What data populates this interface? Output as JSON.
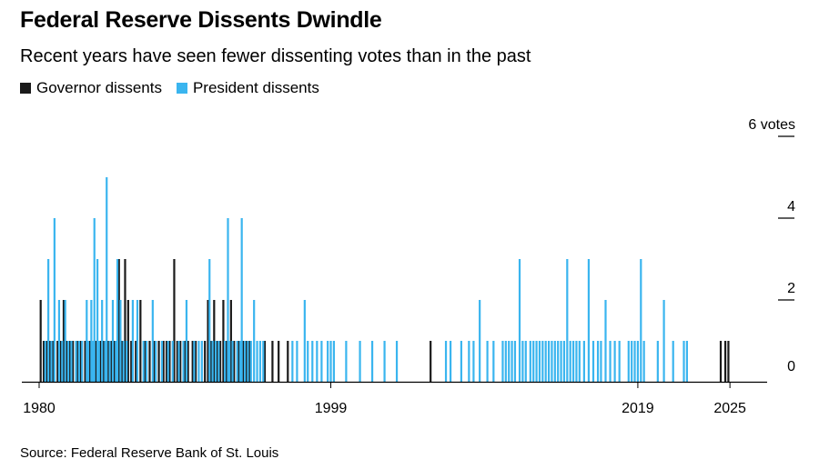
{
  "title": "Federal Reserve Dissents Dwindle",
  "subtitle": "Recent years have seen fewer dissenting votes than in the past",
  "source": "Source: Federal Reserve Bank of St. Louis",
  "colors": {
    "governor": "#1a1a1a",
    "president": "#3ab5ef",
    "axis": "#000000"
  },
  "legend": [
    {
      "label": "Governor dissents",
      "color": "#1a1a1a"
    },
    {
      "label": "President dissents",
      "color": "#3ab5ef"
    }
  ],
  "chart_data": {
    "type": "bar",
    "title": "Federal Reserve Dissents Dwindle",
    "subtitle": "Recent years have seen fewer dissenting votes than in the past",
    "xlim": [
      1980,
      2026
    ],
    "ylim": [
      0,
      6
    ],
    "x_ticks": [
      "1980",
      "1999",
      "2019",
      "2025"
    ],
    "y_ticks": [
      {
        "value": 0,
        "label": "0"
      },
      {
        "value": 2,
        "label": "2"
      },
      {
        "value": 4,
        "label": "4"
      },
      {
        "value": 6,
        "label": "6 votes"
      }
    ],
    "grid": false,
    "legend_position": "top-left",
    "series": [
      {
        "name": "Governor dissents",
        "points": [
          [
            1980.1,
            2
          ],
          [
            1980.3,
            1
          ],
          [
            1980.5,
            1
          ],
          [
            1980.7,
            1
          ],
          [
            1980.9,
            1
          ],
          [
            1981.2,
            1
          ],
          [
            1981.4,
            1
          ],
          [
            1981.6,
            2
          ],
          [
            1981.8,
            1
          ],
          [
            1982.0,
            1
          ],
          [
            1982.2,
            1
          ],
          [
            1982.5,
            1
          ],
          [
            1982.7,
            1
          ],
          [
            1983.0,
            1
          ],
          [
            1983.3,
            1
          ],
          [
            1983.7,
            1
          ],
          [
            1984.0,
            1
          ],
          [
            1984.2,
            1
          ],
          [
            1984.5,
            1
          ],
          [
            1984.7,
            1
          ],
          [
            1984.9,
            1
          ],
          [
            1985.2,
            3
          ],
          [
            1985.4,
            1
          ],
          [
            1985.6,
            3
          ],
          [
            1985.8,
            2
          ],
          [
            1986.0,
            1
          ],
          [
            1986.3,
            1
          ],
          [
            1986.6,
            2
          ],
          [
            1986.9,
            1
          ],
          [
            1987.2,
            1
          ],
          [
            1987.5,
            1
          ],
          [
            1987.8,
            1
          ],
          [
            1988.1,
            1
          ],
          [
            1988.3,
            1
          ],
          [
            1988.5,
            1
          ],
          [
            1988.8,
            3
          ],
          [
            1989.0,
            1
          ],
          [
            1989.2,
            1
          ],
          [
            1989.5,
            1
          ],
          [
            1989.7,
            1
          ],
          [
            1990.0,
            1
          ],
          [
            1990.2,
            1
          ],
          [
            1990.8,
            1
          ],
          [
            1991.0,
            2
          ],
          [
            1991.2,
            1
          ],
          [
            1991.4,
            2
          ],
          [
            1991.6,
            1
          ],
          [
            1991.8,
            1
          ],
          [
            1992.0,
            2
          ],
          [
            1992.2,
            1
          ],
          [
            1992.5,
            2
          ],
          [
            1992.7,
            1
          ],
          [
            1993.0,
            1
          ],
          [
            1993.3,
            1
          ],
          [
            1993.5,
            1
          ],
          [
            1993.7,
            1
          ],
          [
            1994.7,
            1
          ],
          [
            1995.2,
            1
          ],
          [
            1995.6,
            1
          ],
          [
            1996.2,
            1
          ],
          [
            2005.5,
            1
          ],
          [
            2024.4,
            1
          ],
          [
            2024.7,
            1
          ],
          [
            2024.9,
            1
          ]
        ]
      },
      {
        "name": "President dissents",
        "points": [
          [
            1980.4,
            1
          ],
          [
            1980.6,
            3
          ],
          [
            1980.8,
            1
          ],
          [
            1981.0,
            4
          ],
          [
            1981.3,
            2
          ],
          [
            1981.5,
            1
          ],
          [
            1981.7,
            2
          ],
          [
            1981.9,
            1
          ],
          [
            1982.1,
            1
          ],
          [
            1982.4,
            1
          ],
          [
            1982.6,
            1
          ],
          [
            1982.8,
            1
          ],
          [
            1983.1,
            2
          ],
          [
            1983.2,
            1
          ],
          [
            1983.4,
            2
          ],
          [
            1983.5,
            1
          ],
          [
            1983.6,
            4
          ],
          [
            1983.8,
            3
          ],
          [
            1983.9,
            1
          ],
          [
            1984.1,
            2
          ],
          [
            1984.3,
            1
          ],
          [
            1984.4,
            5
          ],
          [
            1984.6,
            1
          ],
          [
            1984.8,
            2
          ],
          [
            1985.0,
            1
          ],
          [
            1985.1,
            3
          ],
          [
            1985.3,
            2
          ],
          [
            1985.5,
            1
          ],
          [
            1985.7,
            1
          ],
          [
            1986.1,
            2
          ],
          [
            1986.4,
            2
          ],
          [
            1986.8,
            1
          ],
          [
            1987.0,
            1
          ],
          [
            1987.4,
            2
          ],
          [
            1987.6,
            1
          ],
          [
            1988.0,
            1
          ],
          [
            1988.4,
            1
          ],
          [
            1988.7,
            1
          ],
          [
            1989.1,
            1
          ],
          [
            1989.4,
            1
          ],
          [
            1989.6,
            2
          ],
          [
            1990.1,
            1
          ],
          [
            1990.4,
            1
          ],
          [
            1990.6,
            1
          ],
          [
            1991.1,
            3
          ],
          [
            1991.3,
            1
          ],
          [
            1991.5,
            1
          ],
          [
            1991.7,
            1
          ],
          [
            1992.1,
            1
          ],
          [
            1992.3,
            4
          ],
          [
            1992.4,
            1
          ],
          [
            1992.6,
            1
          ],
          [
            1992.9,
            1
          ],
          [
            1993.1,
            1
          ],
          [
            1993.2,
            4
          ],
          [
            1993.4,
            1
          ],
          [
            1993.6,
            1
          ],
          [
            1993.8,
            1
          ],
          [
            1994.0,
            2
          ],
          [
            1994.2,
            1
          ],
          [
            1994.4,
            1
          ],
          [
            1994.6,
            1
          ],
          [
            1996.5,
            1
          ],
          [
            1996.8,
            1
          ],
          [
            1997.3,
            2
          ],
          [
            1997.5,
            1
          ],
          [
            1997.8,
            1
          ],
          [
            1998.1,
            1
          ],
          [
            1998.4,
            1
          ],
          [
            1998.8,
            1
          ],
          [
            1999.0,
            1
          ],
          [
            1999.2,
            1
          ],
          [
            2000.0,
            1
          ],
          [
            2000.9,
            1
          ],
          [
            2001.7,
            1
          ],
          [
            2002.5,
            1
          ],
          [
            2003.3,
            1
          ],
          [
            2006.5,
            1
          ],
          [
            2006.8,
            1
          ],
          [
            2007.5,
            1
          ],
          [
            2008.0,
            1
          ],
          [
            2008.3,
            1
          ],
          [
            2008.7,
            2
          ],
          [
            2009.2,
            1
          ],
          [
            2009.6,
            1
          ],
          [
            2010.2,
            1
          ],
          [
            2010.4,
            1
          ],
          [
            2010.6,
            1
          ],
          [
            2010.8,
            1
          ],
          [
            2011.0,
            1
          ],
          [
            2011.3,
            3
          ],
          [
            2011.5,
            1
          ],
          [
            2011.7,
            1
          ],
          [
            2012.0,
            1
          ],
          [
            2012.2,
            1
          ],
          [
            2012.4,
            1
          ],
          [
            2012.6,
            1
          ],
          [
            2012.8,
            1
          ],
          [
            2013.0,
            1
          ],
          [
            2013.2,
            1
          ],
          [
            2013.4,
            1
          ],
          [
            2013.6,
            1
          ],
          [
            2013.8,
            1
          ],
          [
            2014.0,
            1
          ],
          [
            2014.2,
            1
          ],
          [
            2014.4,
            3
          ],
          [
            2014.6,
            1
          ],
          [
            2014.8,
            1
          ],
          [
            2015.0,
            1
          ],
          [
            2015.2,
            1
          ],
          [
            2015.5,
            1
          ],
          [
            2015.8,
            3
          ],
          [
            2016.1,
            1
          ],
          [
            2016.4,
            1
          ],
          [
            2016.6,
            1
          ],
          [
            2016.9,
            2
          ],
          [
            2017.2,
            1
          ],
          [
            2017.5,
            1
          ],
          [
            2017.8,
            1
          ],
          [
            2018.4,
            1
          ],
          [
            2018.6,
            1
          ],
          [
            2018.8,
            1
          ],
          [
            2019.0,
            1
          ],
          [
            2019.2,
            3
          ],
          [
            2019.4,
            1
          ],
          [
            2020.3,
            1
          ],
          [
            2020.7,
            2
          ],
          [
            2021.3,
            1
          ],
          [
            2022.0,
            1
          ],
          [
            2022.2,
            1
          ]
        ]
      }
    ]
  }
}
